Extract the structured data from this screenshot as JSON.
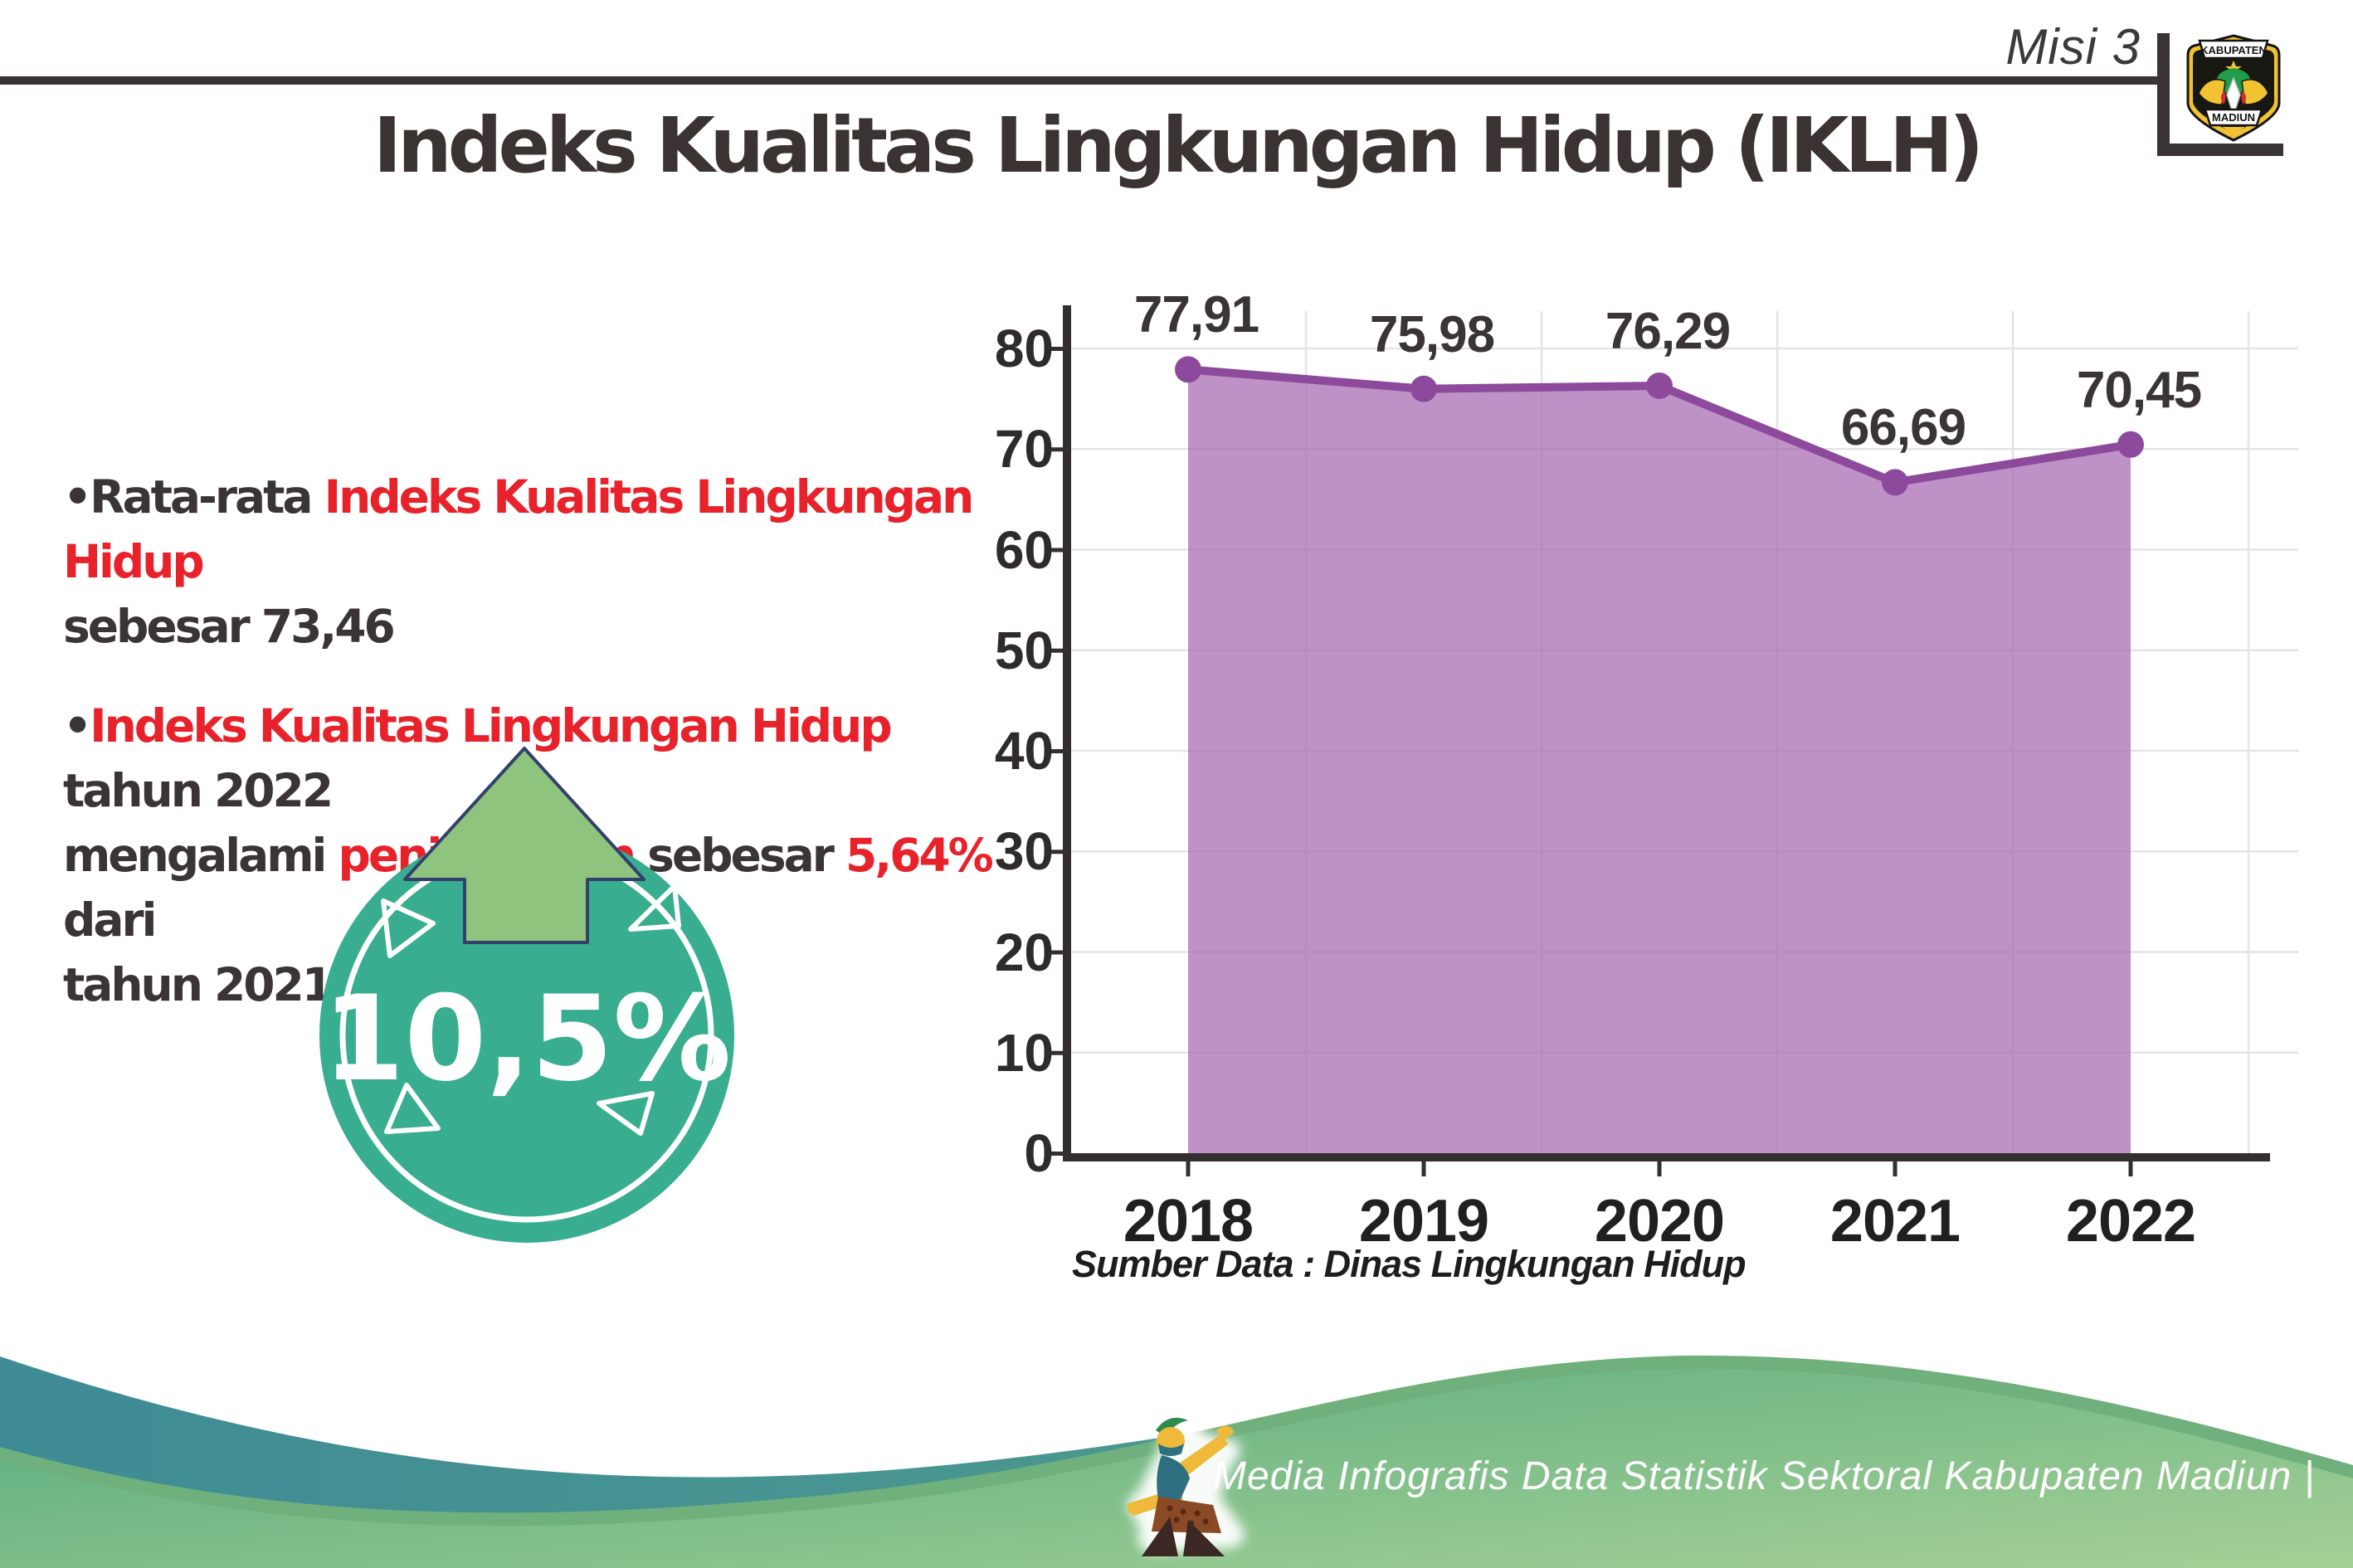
{
  "header": {
    "misi_label": "Misi 3",
    "logo": {
      "top_banner": "KABUPATEN",
      "bottom_banner": "MADIUN"
    }
  },
  "title": "Indeks Kualitas Lingkungan Hidup (IKLH)",
  "bullets": {
    "bullet_char": "•",
    "b1": {
      "dark1": "Rata-rata ",
      "red1": "Indeks Kualitas Lingkungan Hidup",
      "dark2": "sebesar 73,46"
    },
    "b2": {
      "red1": "Indeks Kualitas Lingkungan Hidup",
      "dark1": " tahun 2022",
      "dark2": "mengalami ",
      "red2": "peningkatan",
      "dark3": " sebesar ",
      "red3": "5,64%",
      "dark4": " dari",
      "dark5": "tahun 2021"
    }
  },
  "badge": {
    "value": "10,5%"
  },
  "chart_data": {
    "type": "area",
    "categories": [
      "2018",
      "2019",
      "2020",
      "2021",
      "2022"
    ],
    "series": [
      {
        "name": "IKLH",
        "values": [
          77.91,
          75.98,
          76.29,
          66.69,
          70.45
        ]
      }
    ],
    "value_labels": [
      "77,91",
      "75,98",
      "76,29",
      "66,69",
      "70,45"
    ],
    "title": "Indeks Kualitas Lingkungan Hidup (IKLH)",
    "xlabel": "",
    "ylabel": "",
    "ylim": [
      0,
      80
    ],
    "ytick_step": 10,
    "grid": true,
    "legend": false,
    "line_color": "#8d4a9d",
    "area_color": "#a668b1",
    "source_note": "Sumber Data : Dinas Lingkungan Hidup"
  },
  "footer": {
    "credit": "Media Infografis Data Statistik Sektoral Kabupaten Madiun |"
  }
}
